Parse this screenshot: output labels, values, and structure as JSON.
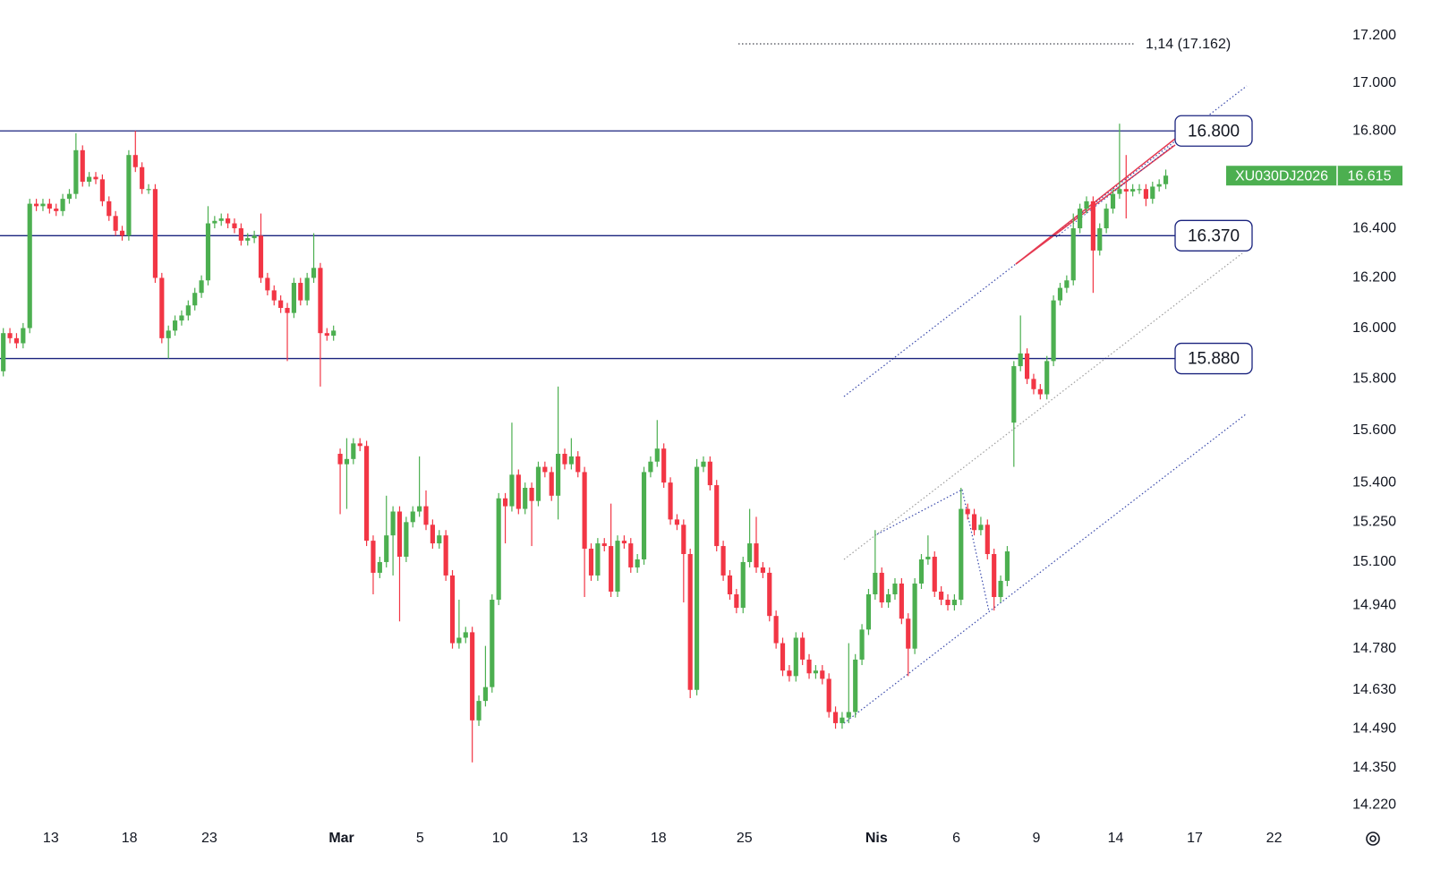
{
  "chart_data": {
    "type": "candlestick",
    "symbol": "XU030DJ2026",
    "last_price": {
      "value": 16615,
      "label": "16.615"
    },
    "annotation": "1,14 (17.162)",
    "log_scale": true,
    "grid": false,
    "up_color": "#4caf50",
    "down_color": "#f23645",
    "line_color": "#1a237e",
    "ylim": [
      14170,
      17353
    ],
    "yticks": [
      {
        "value": 17200,
        "label": "17.200"
      },
      {
        "value": 17000,
        "label": "17.000"
      },
      {
        "value": 16800,
        "label": "16.800"
      },
      {
        "value": 16400,
        "label": "16.400"
      },
      {
        "value": 16200,
        "label": "16.200"
      },
      {
        "value": 16000,
        "label": "16.000"
      },
      {
        "value": 15800,
        "label": "15.800"
      },
      {
        "value": 15600,
        "label": "15.600"
      },
      {
        "value": 15400,
        "label": "15.400"
      },
      {
        "value": 15250,
        "label": "15.250"
      },
      {
        "value": 15100,
        "label": "15.100"
      },
      {
        "value": 14940,
        "label": "14.940"
      },
      {
        "value": 14780,
        "label": "14.780"
      },
      {
        "value": 14630,
        "label": "14.630"
      },
      {
        "value": 14490,
        "label": "14.490"
      },
      {
        "value": 14350,
        "label": "14.350"
      },
      {
        "value": 14220,
        "label": "14.220"
      }
    ],
    "xlim": [
      -0.5,
      201.4
    ],
    "xticks": [
      {
        "value": 7.2,
        "label": "13"
      },
      {
        "value": 19.1,
        "label": "18"
      },
      {
        "value": 31.2,
        "label": "23"
      },
      {
        "value": 51.2,
        "label": "Mar"
      },
      {
        "value": 63.1,
        "label": "5"
      },
      {
        "value": 75.2,
        "label": "10"
      },
      {
        "value": 87.3,
        "label": "13"
      },
      {
        "value": 99.2,
        "label": "18"
      },
      {
        "value": 112.2,
        "label": "25"
      },
      {
        "value": 132.2,
        "label": "Nis"
      },
      {
        "value": 144.3,
        "label": "6"
      },
      {
        "value": 156.4,
        "label": "9"
      },
      {
        "value": 168.4,
        "label": "14"
      },
      {
        "value": 180.4,
        "label": "17"
      },
      {
        "value": 192.4,
        "label": "22"
      }
    ],
    "hlines": [
      {
        "value": 16800,
        "label": "16.800"
      },
      {
        "value": 16370,
        "label": "16.370"
      },
      {
        "value": 15880,
        "label": "15.880"
      }
    ],
    "open": [
      15830,
      15980,
      15960,
      15940,
      16000,
      16500,
      16490,
      16500,
      16480,
      16470,
      16520,
      16540,
      16720,
      16590,
      16610,
      16600,
      16510,
      16450,
      16390,
      16370,
      16700,
      16650,
      16560,
      16560,
      16200,
      15960,
      15990,
      16030,
      16050,
      16090,
      16140,
      16190,
      16420,
      16430,
      16440,
      16420,
      16400,
      16350,
      16360,
      16370,
      16200,
      16150,
      16110,
      16080,
      16060,
      16180,
      16110,
      16200,
      16240,
      15980,
      15970,
      15510,
      15470,
      15490,
      15550,
      15540,
      15180,
      15060,
      15100,
      15200,
      15290,
      15120,
      15250,
      15290,
      15310,
      15240,
      15170,
      15200,
      15050,
      14800,
      14820,
      14840,
      14520,
      14590,
      14640,
      14960,
      15340,
      15310,
      15430,
      15300,
      15380,
      15330,
      15460,
      15440,
      15350,
      15510,
      15470,
      15500,
      15440,
      15150,
      15050,
      15170,
      15160,
      14990,
      15180,
      15170,
      15080,
      15110,
      15440,
      15480,
      15530,
      15400,
      15260,
      15240,
      15130,
      14630,
      15460,
      15480,
      15390,
      15160,
      15050,
      14980,
      14930,
      15100,
      15170,
      15080,
      15060,
      14900,
      14800,
      14700,
      14680,
      14820,
      14740,
      14690,
      14700,
      14670,
      14550,
      14510,
      14530,
      14550,
      14740,
      14850,
      14980,
      15060,
      14950,
      14980,
      15020,
      14890,
      14780,
      15020,
      15110,
      15120,
      14990,
      14960,
      14940,
      14960,
      15300,
      15280,
      15220,
      15240,
      15130,
      14970,
      15030,
      15630,
      15850,
      15900,
      15800,
      15760,
      15740,
      15870,
      16110,
      16160,
      16190,
      16400,
      16480,
      16510,
      16310,
      16400,
      16480,
      16540,
      16560,
      16550,
      16560,
      16560,
      16520,
      16570,
      16580
    ],
    "high": [
      16000,
      16000,
      15980,
      16020,
      16520,
      16520,
      16520,
      16520,
      16500,
      16540,
      16560,
      16790,
      16740,
      16630,
      16630,
      16620,
      16530,
      16470,
      16410,
      16720,
      16800,
      16670,
      16580,
      16580,
      16220,
      16010,
      16050,
      16070,
      16110,
      16160,
      16210,
      16490,
      16450,
      16460,
      16460,
      16440,
      16420,
      16380,
      16390,
      16460,
      16220,
      16170,
      16130,
      16100,
      16200,
      16200,
      16220,
      16380,
      16260,
      16000,
      16010,
      15530,
      15570,
      15570,
      15570,
      15560,
      15200,
      15120,
      15350,
      15310,
      15310,
      15270,
      15310,
      15500,
      15370,
      15260,
      15220,
      15220,
      15070,
      14960,
      14860,
      14860,
      14610,
      14790,
      14980,
      15360,
      15360,
      15630,
      15450,
      15400,
      15400,
      15480,
      15480,
      15460,
      15770,
      15530,
      15570,
      15520,
      15460,
      15170,
      15190,
      15190,
      15320,
      15200,
      15200,
      15190,
      15130,
      15460,
      15500,
      15640,
      15550,
      15420,
      15280,
      15260,
      15150,
      15490,
      15500,
      15500,
      15410,
      15180,
      15070,
      15000,
      15120,
      15300,
      15270,
      15100,
      15080,
      14920,
      14820,
      14720,
      14840,
      14840,
      14760,
      14720,
      14720,
      14690,
      14570,
      14550,
      14800,
      14760,
      14870,
      15000,
      15220,
      15080,
      15000,
      15040,
      15040,
      14910,
      15040,
      15130,
      15200,
      15140,
      15010,
      14980,
      14980,
      15380,
      15320,
      15300,
      15270,
      15260,
      15150,
      15050,
      15160,
      15870,
      16050,
      15920,
      15820,
      15780,
      15890,
      16130,
      16180,
      16210,
      16460,
      16500,
      16530,
      16530,
      16420,
      16500,
      16560,
      16830,
      16700,
      16580,
      16580,
      16580,
      16590,
      16600,
      16640
    ],
    "low": [
      15810,
      15940,
      15920,
      15920,
      15980,
      16470,
      16470,
      16460,
      16450,
      16450,
      16500,
      16520,
      16570,
      16570,
      16580,
      16490,
      16430,
      16370,
      16350,
      16350,
      16630,
      16540,
      16540,
      16180,
      15940,
      15880,
      15970,
      16010,
      16030,
      16070,
      16120,
      16170,
      16400,
      16410,
      16400,
      16380,
      16330,
      16330,
      16340,
      16180,
      16130,
      16090,
      16060,
      15870,
      16040,
      16090,
      16090,
      16180,
      15770,
      15950,
      15950,
      15280,
      15300,
      15470,
      15520,
      15160,
      14980,
      15040,
      15080,
      15050,
      14880,
      15100,
      15230,
      15270,
      15220,
      15150,
      15150,
      15030,
      14780,
      14780,
      14800,
      14370,
      14500,
      14570,
      14620,
      14940,
      15170,
      15290,
      15280,
      15280,
      15160,
      15310,
      15420,
      15330,
      15260,
      15450,
      15450,
      15420,
      14970,
      15030,
      15030,
      15140,
      14970,
      14970,
      15150,
      15060,
      15060,
      15090,
      15420,
      15460,
      15380,
      15240,
      15220,
      14950,
      14600,
      14610,
      15440,
      15370,
      15140,
      15030,
      14960,
      14910,
      14910,
      15080,
      15060,
      15040,
      14880,
      14780,
      14680,
      14660,
      14660,
      14720,
      14670,
      14670,
      14650,
      14530,
      14490,
      14490,
      14510,
      14530,
      14720,
      14830,
      14960,
      14930,
      14930,
      14960,
      14870,
      14680,
      14760,
      15000,
      15090,
      14970,
      14940,
      14920,
      14920,
      14940,
      15260,
      15200,
      15200,
      15110,
      14920,
      14950,
      15010,
      15460,
      15830,
      15780,
      15740,
      15720,
      15720,
      15850,
      16090,
      16140,
      16170,
      16380,
      16460,
      16140,
      16290,
      16380,
      16460,
      16520,
      16440,
      16530,
      16540,
      16490,
      16500,
      16550,
      16560
    ],
    "close": [
      15980,
      15960,
      15940,
      16000,
      16500,
      16490,
      16500,
      16480,
      16470,
      16520,
      16540,
      16720,
      16590,
      16610,
      16600,
      16510,
      16450,
      16390,
      16370,
      16700,
      16650,
      16560,
      16560,
      16200,
      15960,
      15990,
      16030,
      16050,
      16090,
      16140,
      16190,
      16420,
      16430,
      16440,
      16420,
      16400,
      16350,
      16360,
      16370,
      16200,
      16150,
      16110,
      16080,
      16060,
      16180,
      16110,
      16200,
      16240,
      15980,
      15970,
      15990,
      15470,
      15490,
      15550,
      15540,
      15180,
      15060,
      15100,
      15200,
      15290,
      15120,
      15250,
      15290,
      15310,
      15240,
      15170,
      15200,
      15050,
      14800,
      14820,
      14840,
      14520,
      14590,
      14640,
      14960,
      15340,
      15310,
      15430,
      15300,
      15380,
      15330,
      15460,
      15440,
      15350,
      15510,
      15470,
      15500,
      15440,
      15150,
      15050,
      15170,
      15160,
      14990,
      15180,
      15170,
      15080,
      15110,
      15440,
      15480,
      15530,
      15400,
      15260,
      15240,
      15130,
      14630,
      15460,
      15480,
      15390,
      15160,
      15050,
      14980,
      14930,
      15100,
      15170,
      15080,
      15060,
      14900,
      14800,
      14700,
      14680,
      14820,
      14740,
      14690,
      14700,
      14670,
      14550,
      14510,
      14530,
      14550,
      14740,
      14850,
      14980,
      15060,
      14950,
      14980,
      15020,
      14890,
      14780,
      15020,
      15110,
      15120,
      14990,
      14960,
      14940,
      14960,
      15300,
      15280,
      15220,
      15240,
      15130,
      14970,
      15030,
      15140,
      15850,
      15900,
      15800,
      15760,
      15740,
      15870,
      16110,
      16160,
      16190,
      16400,
      16480,
      16510,
      16310,
      16400,
      16480,
      16540,
      16560,
      16550,
      16560,
      16560,
      16520,
      16570,
      16580,
      16615
    ]
  }
}
